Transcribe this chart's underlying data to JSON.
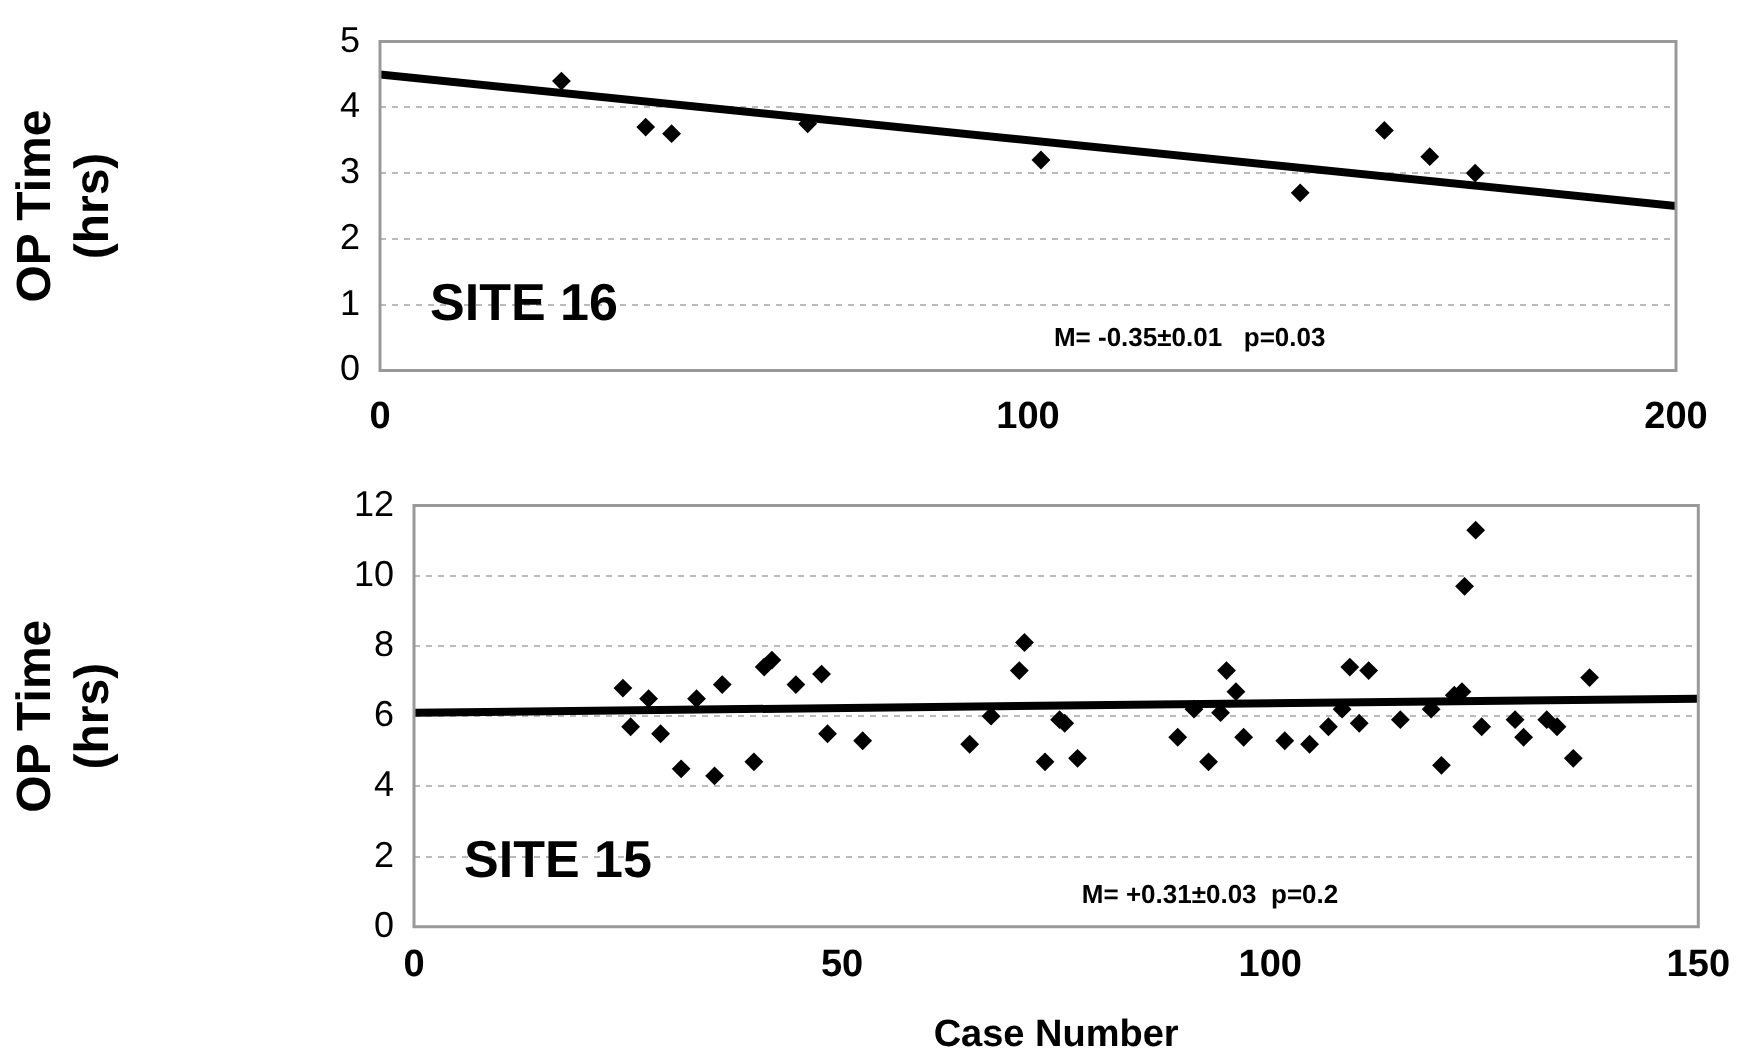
{
  "chart_data": [
    {
      "type": "scatter",
      "ylabel": "OP Time (hrs)",
      "xlim": [
        0,
        200
      ],
      "xticks": [
        0,
        100,
        200
      ],
      "ylim": [
        0,
        5
      ],
      "yticks": [
        0,
        1,
        2,
        3,
        4,
        5
      ],
      "grid": "y",
      "marker": "diamond",
      "legend": false,
      "annotations": [
        "SITE 16",
        "M= -0.35±0.01   p=0.03"
      ],
      "series": [
        {
          "color": "#000000",
          "x": [
            28,
            41,
            45,
            66,
            102,
            142,
            155,
            162,
            169
          ],
          "values": [
            4.4,
            3.7,
            3.6,
            3.75,
            3.2,
            2.7,
            3.65,
            3.25,
            3.0
          ]
        },
        {
          "type": "line",
          "color": "#000000",
          "line_style": "solid",
          "marker": "none",
          "x": [
            0,
            200
          ],
          "values": [
            4.5,
            2.5
          ]
        }
      ]
    },
    {
      "type": "scatter",
      "ylabel": "OP Time (hrs)",
      "xlabel": "Case Number",
      "xlim": [
        0,
        150
      ],
      "xticks": [
        0,
        50,
        100,
        150
      ],
      "ylim": [
        0,
        12
      ],
      "yticks": [
        0,
        2,
        4,
        6,
        8,
        10,
        12
      ],
      "grid": "y",
      "marker": "diamond",
      "legend": false,
      "annotations": [
        "SITE 15",
        "M= +0.31±0.03  p=0.2"
      ],
      "series": [
        {
          "color": "#000000",
          "x": [
            24.4,
            25.3,
            27.4,
            28.8,
            31.2,
            33,
            35.1,
            36,
            39.7,
            40.9,
            41.8,
            44.6,
            47.6,
            48.3,
            52.4,
            64.9,
            67.4,
            70.7,
            71.3,
            73.7,
            75.4,
            76,
            77.5,
            89.2,
            91.1,
            92.8,
            94.2,
            94.9,
            96,
            96.9,
            101.7,
            104.6,
            106.8,
            108.4,
            109.3,
            110.4,
            111.5,
            115.2,
            118.8,
            120,
            121.5,
            122.4,
            122.7,
            124,
            124.7,
            128.6,
            129.6,
            132.3,
            133.5,
            135.4,
            137.3
          ],
          "values": [
            6.8,
            5.7,
            6.5,
            5.5,
            4.5,
            6.5,
            4.3,
            6.9,
            4.7,
            7.4,
            7.6,
            6.9,
            7.2,
            5.5,
            5.3,
            5.2,
            6.0,
            7.3,
            8.1,
            4.7,
            5.9,
            5.8,
            4.8,
            5.4,
            6.2,
            4.7,
            6.1,
            7.3,
            6.7,
            5.4,
            5.3,
            5.2,
            5.7,
            6.2,
            7.4,
            5.8,
            7.3,
            5.9,
            6.2,
            4.6,
            6.6,
            6.7,
            9.7,
            11.3,
            5.7,
            5.9,
            5.4,
            5.9,
            5.7,
            4.8,
            7.1
          ]
        },
        {
          "type": "line",
          "color": "#000000",
          "line_style": "solid",
          "marker": "none",
          "x": [
            0,
            150
          ],
          "values": [
            6.1,
            6.5
          ]
        }
      ]
    }
  ]
}
